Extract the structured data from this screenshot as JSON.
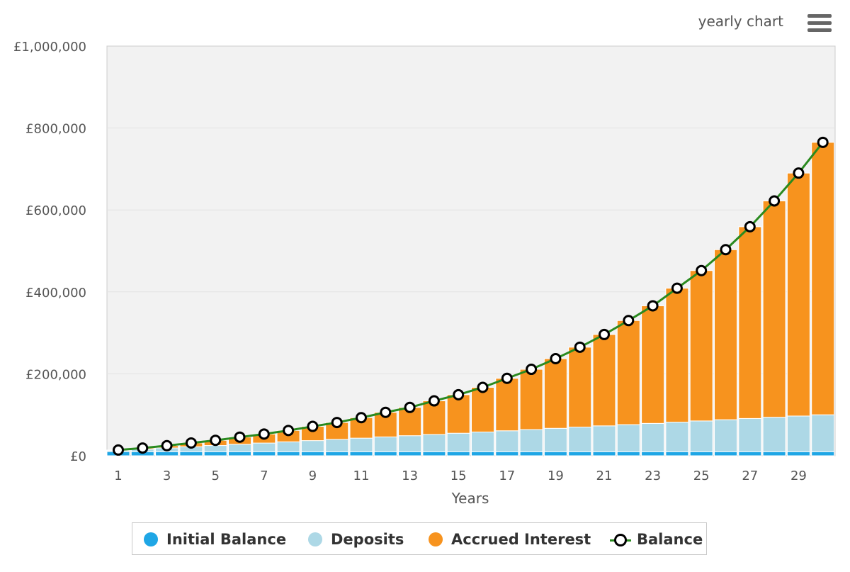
{
  "menu": {
    "title": "yearly chart",
    "menu_icon": "hamburger-menu-icon"
  },
  "chart_data": {
    "type": "bar",
    "stacked": true,
    "xlabel": "Years",
    "ylabel": "",
    "ylim": [
      0,
      1000000
    ],
    "yticks": [
      0,
      200000,
      400000,
      600000,
      800000,
      1000000
    ],
    "ytick_labels": [
      "£0",
      "£200,000",
      "£400,000",
      "£600,000",
      "£800,000",
      "£1,000,000"
    ],
    "xtick_labels": [
      "1",
      "3",
      "5",
      "7",
      "9",
      "11",
      "13",
      "15",
      "17",
      "19",
      "21",
      "23",
      "25",
      "27",
      "29"
    ],
    "categories": [
      1,
      2,
      3,
      4,
      5,
      6,
      7,
      8,
      9,
      10,
      11,
      12,
      13,
      14,
      15,
      16,
      17,
      18,
      19,
      20,
      21,
      22,
      23,
      24,
      25,
      26,
      27,
      28,
      29,
      30
    ],
    "grid": true,
    "legend_position": "bottom",
    "series": [
      {
        "name": "Initial Balance",
        "type": "bar",
        "color": "#1fa6e5",
        "values": [
          10000,
          10000,
          10000,
          10000,
          10000,
          10000,
          10000,
          10000,
          10000,
          10000,
          10000,
          10000,
          10000,
          10000,
          10000,
          10000,
          10000,
          10000,
          10000,
          10000,
          10000,
          10000,
          10000,
          10000,
          10000,
          10000,
          10000,
          10000,
          10000,
          10000
        ]
      },
      {
        "name": "Deposits",
        "type": "bar",
        "color": "#add8e6",
        "values": [
          3000,
          6000,
          9000,
          12000,
          15000,
          18000,
          21000,
          24000,
          27000,
          30000,
          33000,
          36000,
          39000,
          42000,
          45000,
          48000,
          51000,
          54000,
          57000,
          60000,
          63000,
          66000,
          69000,
          72000,
          75000,
          78000,
          81000,
          84000,
          87000,
          90000
        ]
      },
      {
        "name": "Accrued Interest",
        "type": "bar",
        "color": "#f7931e",
        "values": [
          1000,
          2800,
          5600,
          9200,
          12700,
          17500,
          22000,
          27700,
          34700,
          41200,
          50000,
          60000,
          69000,
          82000,
          94000,
          109000,
          128000,
          147000,
          170000,
          195000,
          223000,
          254000,
          287000,
          327000,
          367000,
          415000,
          468000,
          528000,
          593000,
          665000
        ]
      },
      {
        "name": "Balance",
        "type": "line",
        "color": "#2a8a1f",
        "values": [
          14000,
          18800,
          24600,
          31200,
          37700,
          45500,
          53000,
          61700,
          71700,
          81200,
          93000,
          106000,
          118000,
          134000,
          149000,
          167000,
          189000,
          211000,
          237000,
          265000,
          296000,
          330000,
          366000,
          409000,
          452000,
          503000,
          559000,
          622000,
          690000,
          765000
        ]
      }
    ]
  }
}
